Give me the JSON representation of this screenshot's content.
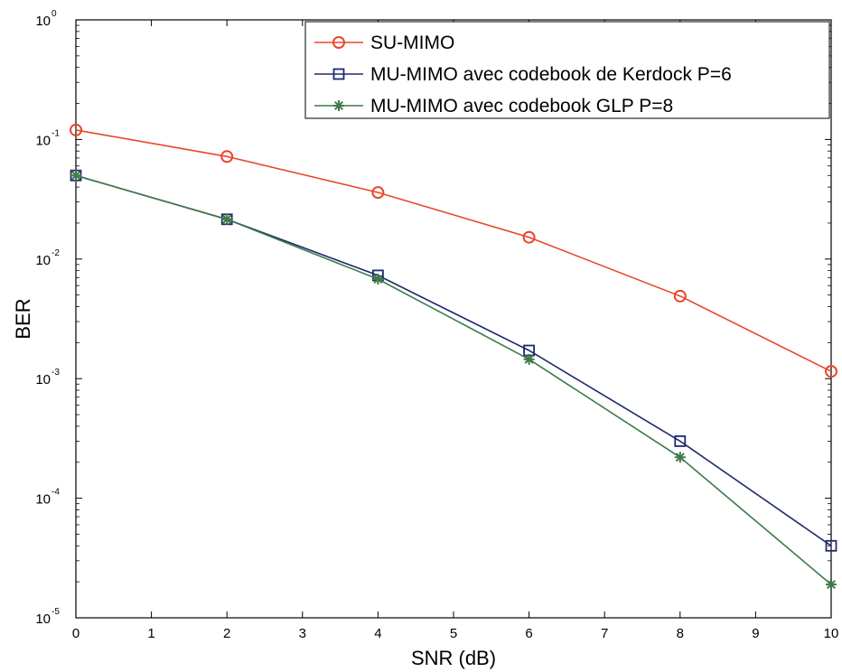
{
  "chart_data": {
    "type": "line",
    "title": "",
    "xlabel": "SNR (dB)",
    "ylabel": "BER",
    "xlim": [
      0,
      10
    ],
    "ylim": [
      1e-05,
      1
    ],
    "yscale": "log",
    "grid": false,
    "legend_position": "top-right",
    "x": [
      0,
      2,
      4,
      6,
      8,
      10
    ],
    "x_tick_labels": [
      "0",
      "1",
      "2",
      "3",
      "4",
      "5",
      "6",
      "7",
      "8",
      "9",
      "10"
    ],
    "y_tick_labels": [
      {
        "base": "10",
        "exp": "0"
      },
      {
        "base": "10",
        "exp": "-1"
      },
      {
        "base": "10",
        "exp": "-2"
      },
      {
        "base": "10",
        "exp": "-3"
      },
      {
        "base": "10",
        "exp": "-4"
      },
      {
        "base": "10",
        "exp": "-5"
      }
    ],
    "series": [
      {
        "name": "SU-MIMO",
        "color": "#e8462b",
        "marker": "circle",
        "values": [
          0.12,
          0.072,
          0.036,
          0.0152,
          0.0049,
          0.00115
        ]
      },
      {
        "name": "MU-MIMO avec codebook de Kerdock P=6",
        "color": "#1f2a6e",
        "marker": "square",
        "values": [
          0.05,
          0.0215,
          0.0073,
          0.00172,
          0.0003,
          4e-05
        ]
      },
      {
        "name": "MU-MIMO avec codebook GLP P=8",
        "color": "#3f7a4a",
        "marker": "star",
        "values": [
          0.05,
          0.0215,
          0.0068,
          0.00145,
          0.00022,
          1.9e-05
        ]
      }
    ]
  }
}
